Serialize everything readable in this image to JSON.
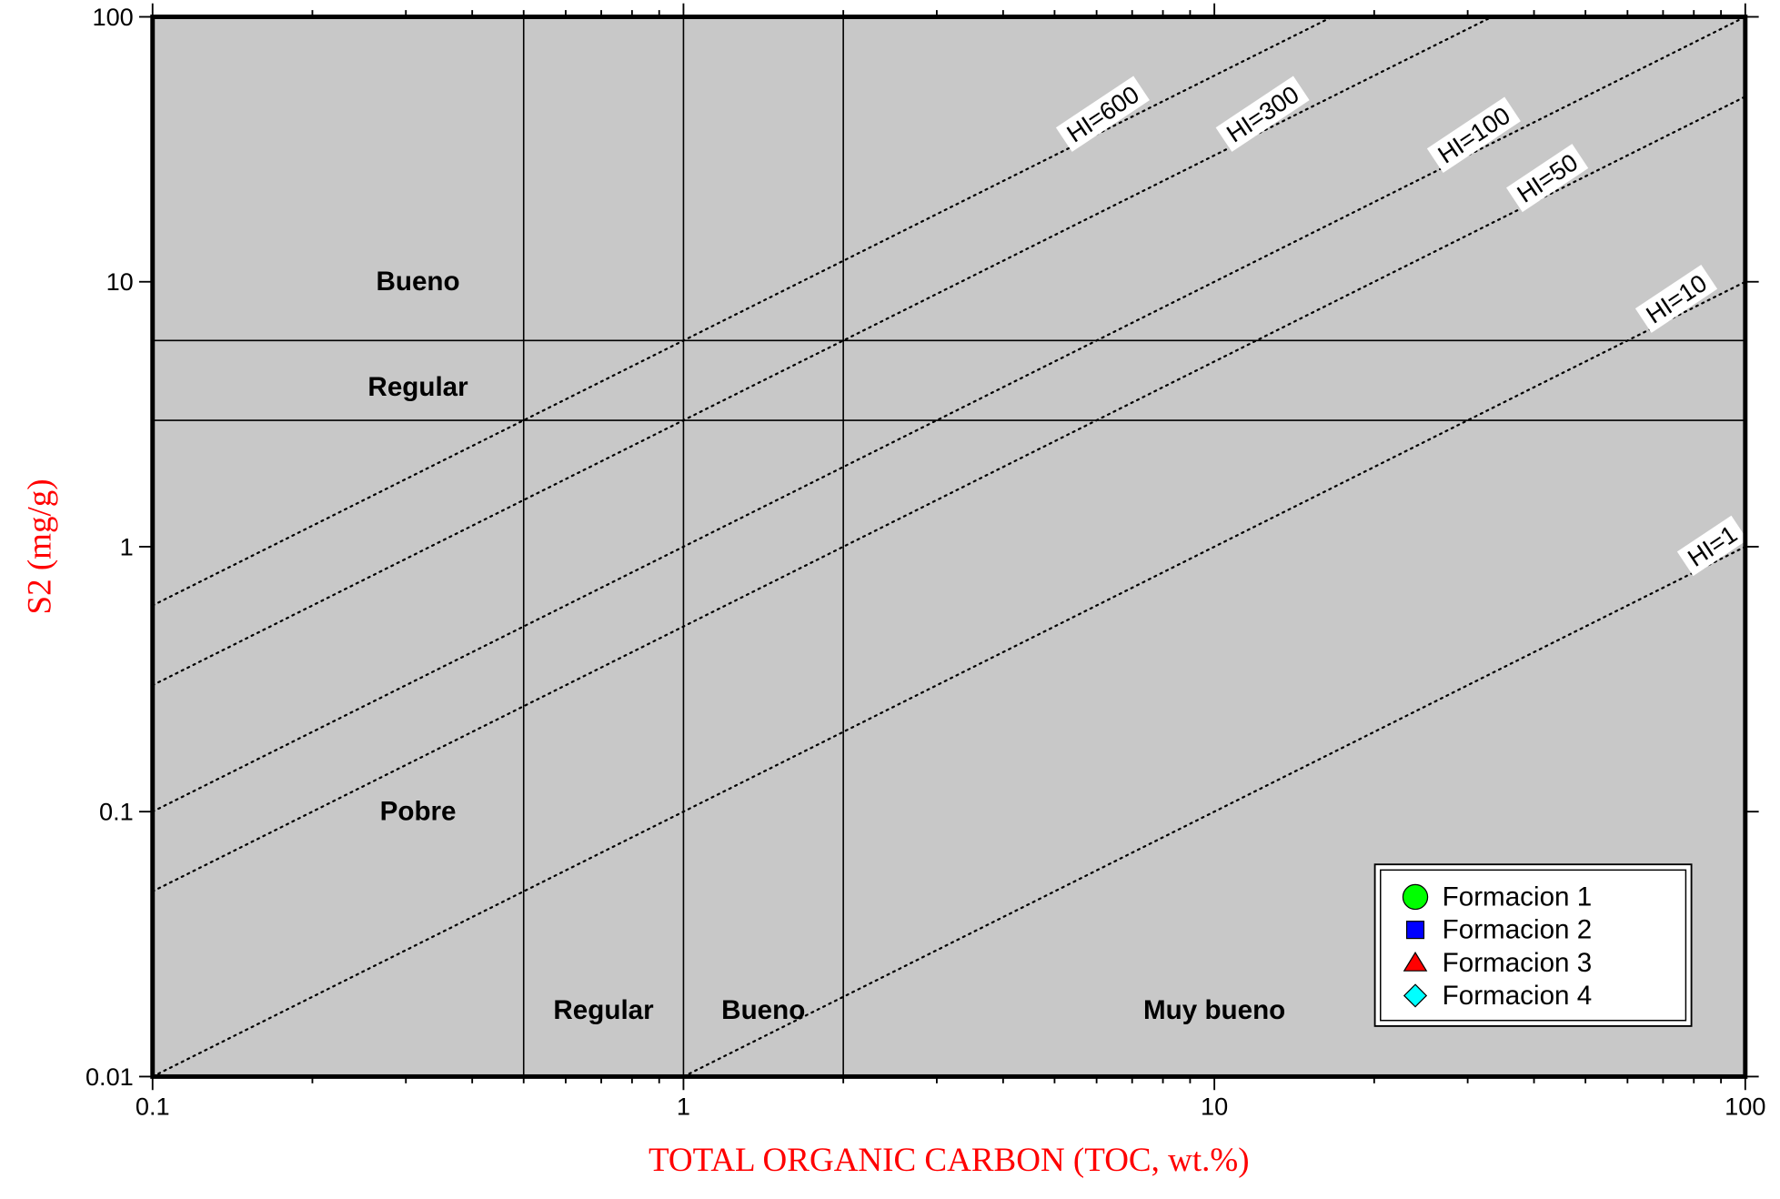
{
  "chart_data": {
    "type": "scatter",
    "xscale": "log",
    "yscale": "log",
    "xlim": [
      0.1,
      100
    ],
    "ylim": [
      0.01,
      100
    ],
    "xlabel": "TOTAL ORGANIC CARBON (TOC, wt.%)",
    "ylabel": "S2 (mg/g)",
    "axis_label_color": "#ff0000",
    "plot_background": "#c8c8c8",
    "x_ticks": [
      {
        "value": 0.1,
        "label": "0.1"
      },
      {
        "value": 1,
        "label": "1"
      },
      {
        "value": 10,
        "label": "10"
      },
      {
        "value": 100,
        "label": "100"
      }
    ],
    "y_ticks": [
      {
        "value": 0.01,
        "label": "0.01"
      },
      {
        "value": 0.1,
        "label": "0.1"
      },
      {
        "value": 1,
        "label": "1"
      },
      {
        "value": 10,
        "label": "10"
      },
      {
        "value": 100,
        "label": "100"
      }
    ],
    "vertical_boundaries": [
      0.5,
      1,
      2
    ],
    "horizontal_boundaries": [
      3,
      6
    ],
    "hi_lines": [
      {
        "hi": 600,
        "label": "HI=600",
        "label_toc": 6.4
      },
      {
        "hi": 300,
        "label": "HI=300",
        "label_toc": 12.8
      },
      {
        "hi": 100,
        "label": "HI=100",
        "label_toc": 32
      },
      {
        "hi": 50,
        "label": "HI=50",
        "label_toc": 44
      },
      {
        "hi": 10,
        "label": "HI=10",
        "label_toc": 77
      },
      {
        "hi": 1,
        "label": "HI=1",
        "label_toc": 90
      }
    ],
    "zone_labels": [
      {
        "text": "Bueno",
        "x": 0.3162,
        "y": 10
      },
      {
        "text": "Regular",
        "x": 0.3162,
        "y": 4
      },
      {
        "text": "Pobre",
        "x": 0.3162,
        "y": 0.1
      },
      {
        "text": "Regular",
        "x": 0.707,
        "y": 0.0178
      },
      {
        "text": "Bueno",
        "x": 1.414,
        "y": 0.0178
      },
      {
        "text": "Muy bueno",
        "x": 10,
        "y": 0.0178
      }
    ],
    "series": [
      {
        "name": "Formacion 1",
        "marker": "circle",
        "color": "#00ff00",
        "points": []
      },
      {
        "name": "Formacion 2",
        "marker": "square",
        "color": "#0000ff",
        "points": []
      },
      {
        "name": "Formacion 3",
        "marker": "triangle",
        "color": "#ff0000",
        "points": []
      },
      {
        "name": "Formacion 4",
        "marker": "diamond",
        "color": "#00ffff",
        "points": []
      }
    ],
    "legend_position": "bottom-right"
  }
}
